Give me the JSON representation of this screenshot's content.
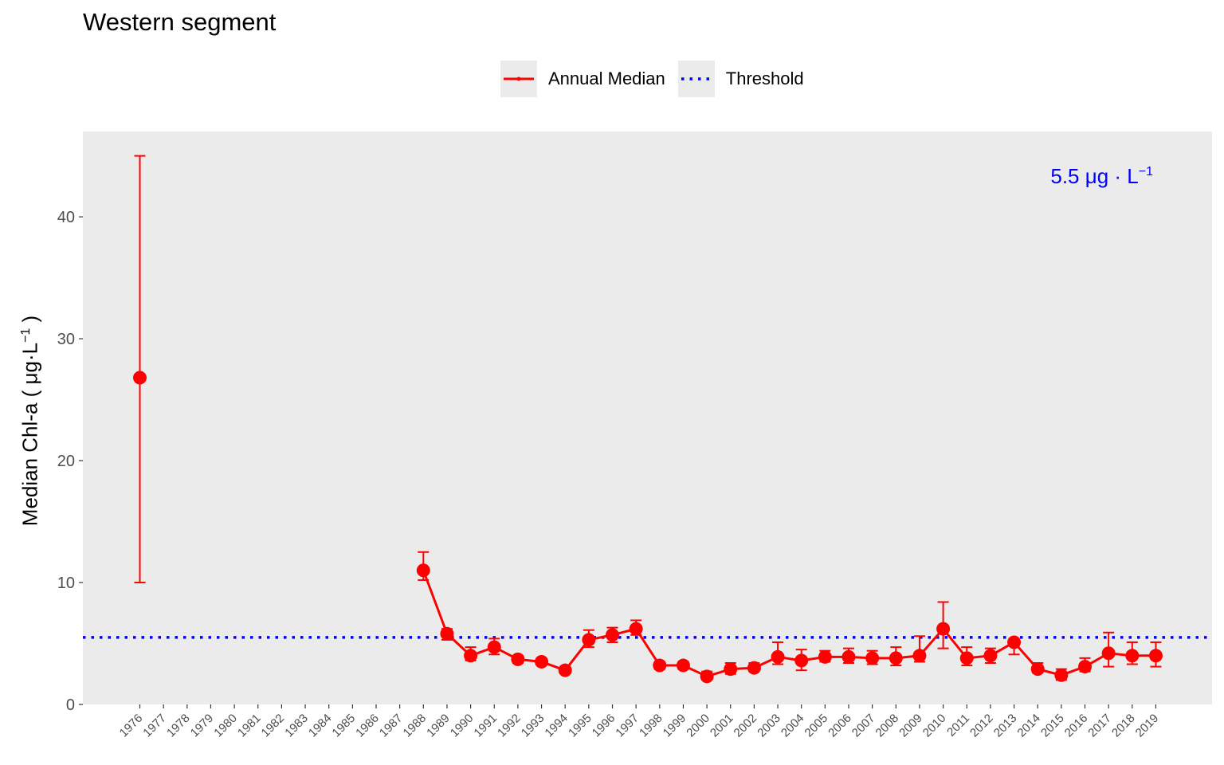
{
  "title": "Western segment",
  "legend": {
    "items": [
      {
        "label": "Annual Median",
        "color": "#ff0000",
        "style": "line-point"
      },
      {
        "label": "Threshold",
        "color": "#0000ff",
        "style": "dotted"
      }
    ],
    "position": "top"
  },
  "ylabel": {
    "prefix": "Median Chl-a ( μg·L",
    "exponent": "−1",
    "suffix": " )"
  },
  "threshold_annotation": {
    "text": "5.5 μg · L",
    "exponent": "−1",
    "color": "#0000ff"
  },
  "colors": {
    "median": "#ff0000",
    "threshold": "#0000ff",
    "panel": "#ebebeb"
  },
  "chart_data": {
    "type": "line",
    "title": "Western segment",
    "ylabel": "Median Chl-a ( μg·L−1 )",
    "xlabel": "",
    "ylim": [
      0,
      47
    ],
    "yticks": [
      0,
      10,
      20,
      30,
      40
    ],
    "grid": false,
    "legend_position": "top",
    "categories": [
      "1976",
      "1977",
      "1978",
      "1979",
      "1980",
      "1981",
      "1982",
      "1983",
      "1984",
      "1985",
      "1986",
      "1987",
      "1988",
      "1989",
      "1990",
      "1991",
      "1992",
      "1993",
      "1994",
      "1995",
      "1996",
      "1997",
      "1998",
      "1999",
      "2000",
      "2001",
      "2002",
      "2003",
      "2004",
      "2005",
      "2006",
      "2007",
      "2008",
      "2009",
      "2010",
      "2011",
      "2012",
      "2013",
      "2014",
      "2015",
      "2016",
      "2017",
      "2018",
      "2019"
    ],
    "threshold": 5.5,
    "series": [
      {
        "name": "Annual Median",
        "points": [
          {
            "x": "1976",
            "y": 26.8,
            "lo": 10.0,
            "hi": 45.0
          },
          {
            "x": "1988",
            "y": 11.0,
            "lo": 10.2,
            "hi": 12.5
          },
          {
            "x": "1989",
            "y": 5.8,
            "lo": 5.3,
            "hi": 6.2
          },
          {
            "x": "1990",
            "y": 4.0,
            "lo": 3.6,
            "hi": 4.7
          },
          {
            "x": "1991",
            "y": 4.7,
            "lo": 4.1,
            "hi": 5.4
          },
          {
            "x": "1992",
            "y": 3.7,
            "lo": 3.4,
            "hi": 4.0
          },
          {
            "x": "1993",
            "y": 3.5,
            "lo": 3.3,
            "hi": 3.8
          },
          {
            "x": "1994",
            "y": 2.8,
            "lo": 2.6,
            "hi": 3.1
          },
          {
            "x": "1995",
            "y": 5.3,
            "lo": 4.7,
            "hi": 6.1
          },
          {
            "x": "1996",
            "y": 5.7,
            "lo": 5.1,
            "hi": 6.3
          },
          {
            "x": "1997",
            "y": 6.2,
            "lo": 5.7,
            "hi": 6.9
          },
          {
            "x": "1998",
            "y": 3.2,
            "lo": 2.9,
            "hi": 3.5
          },
          {
            "x": "1999",
            "y": 3.2,
            "lo": 2.9,
            "hi": 3.5
          },
          {
            "x": "2000",
            "y": 2.3,
            "lo": 2.1,
            "hi": 2.7
          },
          {
            "x": "2001",
            "y": 2.9,
            "lo": 2.5,
            "hi": 3.4
          },
          {
            "x": "2002",
            "y": 3.0,
            "lo": 2.7,
            "hi": 3.4
          },
          {
            "x": "2003",
            "y": 3.9,
            "lo": 3.3,
            "hi": 5.1
          },
          {
            "x": "2004",
            "y": 3.6,
            "lo": 2.8,
            "hi": 4.5
          },
          {
            "x": "2005",
            "y": 3.9,
            "lo": 3.5,
            "hi": 4.4
          },
          {
            "x": "2006",
            "y": 3.9,
            "lo": 3.4,
            "hi": 4.6
          },
          {
            "x": "2007",
            "y": 3.8,
            "lo": 3.3,
            "hi": 4.4
          },
          {
            "x": "2008",
            "y": 3.8,
            "lo": 3.2,
            "hi": 4.7
          },
          {
            "x": "2009",
            "y": 4.0,
            "lo": 3.5,
            "hi": 5.6
          },
          {
            "x": "2010",
            "y": 6.2,
            "lo": 4.6,
            "hi": 8.4
          },
          {
            "x": "2011",
            "y": 3.8,
            "lo": 3.2,
            "hi": 4.7
          },
          {
            "x": "2012",
            "y": 4.0,
            "lo": 3.4,
            "hi": 4.6
          },
          {
            "x": "2013",
            "y": 5.1,
            "lo": 4.1,
            "hi": 5.4
          },
          {
            "x": "2014",
            "y": 2.9,
            "lo": 2.6,
            "hi": 3.4
          },
          {
            "x": "2015",
            "y": 2.4,
            "lo": 2.0,
            "hi": 2.9
          },
          {
            "x": "2016",
            "y": 3.1,
            "lo": 2.7,
            "hi": 3.8
          },
          {
            "x": "2017",
            "y": 4.2,
            "lo": 3.1,
            "hi": 5.9
          },
          {
            "x": "2018",
            "y": 4.0,
            "lo": 3.3,
            "hi": 5.1
          },
          {
            "x": "2019",
            "y": 4.0,
            "lo": 3.1,
            "hi": 5.1
          }
        ]
      }
    ]
  }
}
